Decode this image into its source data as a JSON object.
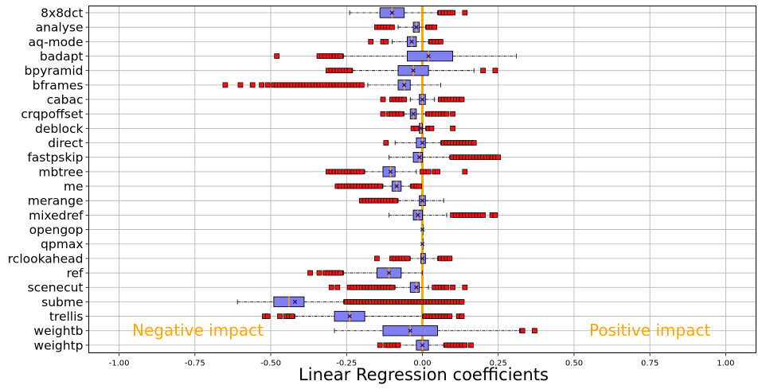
{
  "chart_data": {
    "type": "boxplot",
    "orientation": "horizontal",
    "xlabel": "Linear Regression coefficients",
    "ylabel": "",
    "xlim": [
      -1.1,
      1.1
    ],
    "x_ticks": [
      "-1.00",
      "-0.75",
      "-0.50",
      "-0.25",
      "0.00",
      "0.25",
      "0.50",
      "0.75",
      "1.00"
    ],
    "grid": true,
    "zero_line": 0.0,
    "annotations": {
      "negative": "Negative impact",
      "positive": "Positive impact"
    },
    "colors": {
      "box_fill": "#8080f0",
      "outlier_fill": "#ee1111",
      "zero_line": "#ffa500",
      "annotation": "#ffa500",
      "median": "#ffa500",
      "mean": "#1a1a8a"
    },
    "categories": [
      "8x8dct",
      "analyse",
      "aq-mode",
      "badapt",
      "bpyramid",
      "bframes",
      "cabac",
      "crqpoffset",
      "deblock",
      "direct",
      "fastpskip",
      "mbtree",
      "me",
      "merange",
      "mixedref",
      "opengop",
      "qpmax",
      "rclookahead",
      "ref",
      "scenecut",
      "subme",
      "trellis",
      "weightb",
      "weightp"
    ],
    "boxes": [
      {
        "name": "8x8dct",
        "whislo": -0.24,
        "q1": -0.14,
        "med": -0.1,
        "mean": -0.1,
        "q3": -0.06,
        "whishi": 0.05,
        "fliers": [
          0.06,
          0.07,
          0.08,
          0.09,
          0.1,
          0.14
        ]
      },
      {
        "name": "analyse",
        "whislo": -0.08,
        "q1": -0.03,
        "med": -0.02,
        "mean": -0.02,
        "q3": -0.01,
        "whishi": 0.01,
        "fliers": [
          -0.15,
          -0.14,
          -0.13,
          -0.12,
          -0.11,
          -0.1,
          0.02,
          0.03,
          0.04
        ]
      },
      {
        "name": "aq-mode",
        "whislo": -0.1,
        "q1": -0.05,
        "med": -0.035,
        "mean": -0.035,
        "q3": -0.02,
        "whishi": 0.02,
        "fliers": [
          -0.17,
          -0.13,
          -0.12,
          0.03,
          0.04,
          0.05,
          0.06
        ]
      },
      {
        "name": "badapt",
        "whislo": -0.26,
        "q1": -0.05,
        "med": 0.02,
        "mean": 0.02,
        "q3": 0.1,
        "whishi": 0.31,
        "fliers": [
          -0.48,
          -0.34,
          -0.33,
          -0.32,
          -0.31,
          -0.3,
          -0.29,
          -0.28,
          -0.27
        ]
      },
      {
        "name": "bpyramid",
        "whislo": -0.23,
        "q1": -0.08,
        "med": -0.03,
        "mean": -0.03,
        "q3": 0.02,
        "whishi": 0.17,
        "fliers": [
          -0.31,
          -0.3,
          -0.29,
          -0.28,
          -0.27,
          -0.26,
          -0.25,
          -0.24,
          0.2,
          0.24
        ]
      },
      {
        "name": "bframes",
        "whislo": -0.18,
        "q1": -0.08,
        "med": -0.06,
        "mean": -0.06,
        "q3": -0.04,
        "whishi": 0.06,
        "fliers": [
          -0.65,
          -0.6,
          -0.56,
          -0.53,
          -0.51,
          -0.49,
          -0.48,
          -0.47,
          -0.46,
          -0.45,
          -0.44,
          -0.43,
          -0.42,
          -0.41,
          -0.4,
          -0.39,
          -0.38,
          -0.37,
          -0.36,
          -0.35,
          -0.34,
          -0.33,
          -0.32,
          -0.31,
          -0.3,
          -0.29,
          -0.28,
          -0.27,
          -0.26,
          -0.25,
          -0.24,
          -0.23,
          -0.22,
          -0.21,
          -0.2
        ]
      },
      {
        "name": "cabac",
        "whislo": -0.04,
        "q1": -0.01,
        "med": 0.0,
        "mean": 0.0,
        "q3": 0.01,
        "whishi": 0.04,
        "fliers": [
          -0.13,
          -0.1,
          -0.09,
          -0.08,
          -0.07,
          -0.06,
          0.06,
          0.07,
          0.08,
          0.09,
          0.1,
          0.11,
          0.12,
          0.13
        ]
      },
      {
        "name": "crqpoffset",
        "whislo": -0.06,
        "q1": -0.04,
        "med": -0.03,
        "mean": -0.03,
        "q3": -0.02,
        "whishi": 0.01,
        "fliers": [
          -0.13,
          -0.11,
          -0.1,
          -0.09,
          -0.08,
          -0.07,
          0.02,
          0.03,
          0.04,
          0.05,
          0.06,
          0.07,
          0.08,
          0.1
        ]
      },
      {
        "name": "deblock",
        "whislo": -0.02,
        "q1": -0.01,
        "med": -0.005,
        "mean": -0.005,
        "q3": 0.0,
        "whishi": 0.01,
        "fliers": [
          -0.03,
          -0.02,
          0.02,
          0.03,
          0.1
        ]
      },
      {
        "name": "direct",
        "whislo": -0.09,
        "q1": -0.02,
        "med": 0.0,
        "mean": 0.0,
        "q3": 0.01,
        "whishi": 0.06,
        "fliers": [
          -0.12,
          0.07,
          0.08,
          0.09,
          0.1,
          0.11,
          0.12,
          0.13,
          0.14,
          0.15,
          0.16,
          0.17
        ]
      },
      {
        "name": "fastpskip",
        "whislo": -0.11,
        "q1": -0.03,
        "med": -0.01,
        "mean": -0.01,
        "q3": 0.0,
        "whishi": 0.09,
        "fliers": [
          0.1,
          0.11,
          0.12,
          0.13,
          0.14,
          0.15,
          0.16,
          0.17,
          0.18,
          0.19,
          0.2,
          0.21,
          0.22,
          0.23,
          0.24,
          0.25
        ]
      },
      {
        "name": "mbtree",
        "whislo": -0.19,
        "q1": -0.13,
        "med": -0.105,
        "mean": -0.105,
        "q3": -0.09,
        "whishi": -0.02,
        "fliers": [
          -0.31,
          -0.3,
          -0.29,
          -0.28,
          -0.27,
          -0.26,
          -0.25,
          -0.24,
          -0.23,
          -0.22,
          -0.21,
          -0.2,
          0.0,
          0.01,
          0.02,
          0.04,
          0.05,
          0.14
        ]
      },
      {
        "name": "me",
        "whislo": -0.13,
        "q1": -0.1,
        "med": -0.085,
        "mean": -0.085,
        "q3": -0.07,
        "whishi": -0.04,
        "fliers": [
          -0.28,
          -0.27,
          -0.26,
          -0.25,
          -0.24,
          -0.23,
          -0.22,
          -0.21,
          -0.2,
          -0.19,
          -0.18,
          -0.17,
          -0.16,
          -0.15,
          -0.14,
          -0.03,
          -0.02,
          -0.01
        ]
      },
      {
        "name": "merange",
        "whislo": -0.08,
        "q1": -0.01,
        "med": 0.0,
        "mean": 0.0,
        "q3": 0.01,
        "whishi": 0.07,
        "fliers": [
          -0.2,
          -0.19,
          -0.18,
          -0.17,
          -0.16,
          -0.15,
          -0.14,
          -0.13,
          -0.12,
          -0.11,
          -0.1,
          -0.09
        ]
      },
      {
        "name": "mixedref",
        "whislo": -0.11,
        "q1": -0.03,
        "med": -0.015,
        "mean": -0.015,
        "q3": 0.0,
        "whishi": 0.08,
        "fliers": [
          0.1,
          0.11,
          0.12,
          0.13,
          0.14,
          0.15,
          0.16,
          0.17,
          0.18,
          0.19,
          0.2,
          0.23,
          0.24
        ]
      },
      {
        "name": "opengop",
        "whislo": 0.0,
        "q1": 0.0,
        "med": 0.0,
        "mean": 0.0,
        "q3": 0.0,
        "whishi": 0.0,
        "fliers": []
      },
      {
        "name": "qpmax",
        "whislo": 0.0,
        "q1": 0.0,
        "med": 0.0,
        "mean": 0.0,
        "q3": 0.0,
        "whishi": 0.0,
        "fliers": []
      },
      {
        "name": "rclookahead",
        "whislo": -0.04,
        "q1": -0.005,
        "med": 0.0,
        "mean": 0.0,
        "q3": 0.01,
        "whishi": 0.05,
        "fliers": [
          -0.15,
          -0.1,
          -0.09,
          -0.08,
          -0.07,
          -0.06,
          -0.05,
          0.06,
          0.07,
          0.08,
          0.09
        ]
      },
      {
        "name": "ref",
        "whislo": -0.26,
        "q1": -0.15,
        "med": -0.11,
        "mean": -0.11,
        "q3": -0.07,
        "whishi": 0.0,
        "fliers": [
          -0.37,
          -0.34,
          -0.32,
          -0.31,
          -0.3,
          -0.29,
          -0.28,
          -0.27
        ]
      },
      {
        "name": "scenecut",
        "whislo": -0.09,
        "q1": -0.04,
        "med": -0.02,
        "mean": -0.02,
        "q3": -0.01,
        "whishi": 0.02,
        "fliers": [
          -0.3,
          -0.28,
          -0.24,
          -0.23,
          -0.22,
          -0.21,
          -0.2,
          -0.19,
          -0.18,
          -0.17,
          -0.16,
          -0.15,
          -0.14,
          -0.13,
          -0.12,
          -0.11,
          -0.1,
          0.04,
          0.05,
          0.06,
          0.07,
          0.08,
          0.1,
          0.14
        ]
      },
      {
        "name": "subme",
        "whislo": -0.61,
        "q1": -0.49,
        "med": -0.44,
        "mean": -0.42,
        "q3": -0.39,
        "whishi": -0.26,
        "fliers": [
          -0.25,
          -0.24,
          -0.23,
          -0.22,
          -0.21,
          -0.2,
          -0.19,
          -0.18,
          -0.17,
          -0.16,
          -0.15,
          -0.14,
          -0.13,
          -0.12,
          -0.11,
          -0.1,
          -0.09,
          -0.08,
          -0.07,
          -0.06,
          -0.05,
          -0.04,
          -0.03,
          -0.02,
          -0.01,
          0.0,
          0.01,
          0.02,
          0.03,
          0.04,
          0.05,
          0.06,
          0.07,
          0.08,
          0.09,
          0.1,
          0.11,
          0.12,
          0.13
        ]
      },
      {
        "name": "trellis",
        "whislo": -0.42,
        "q1": -0.29,
        "med": -0.24,
        "mean": -0.24,
        "q3": -0.19,
        "whishi": 0.0,
        "fliers": [
          -0.52,
          -0.51,
          -0.47,
          -0.45,
          -0.44,
          -0.43,
          0.01,
          0.02,
          0.03,
          0.04,
          0.05,
          0.06,
          0.07,
          0.08,
          0.09,
          0.12,
          0.13
        ]
      },
      {
        "name": "weightb",
        "whislo": -0.29,
        "q1": -0.13,
        "med": -0.04,
        "mean": -0.04,
        "q3": 0.05,
        "whishi": 0.32,
        "fliers": [
          0.33,
          0.37
        ]
      },
      {
        "name": "weightp",
        "whislo": -0.08,
        "q1": -0.02,
        "med": 0.0,
        "mean": 0.0,
        "q3": 0.02,
        "whishi": 0.07,
        "fliers": [
          -0.14,
          -0.12,
          -0.11,
          -0.1,
          -0.09,
          -0.08,
          0.08,
          0.09,
          0.1,
          0.11,
          0.12,
          0.13,
          0.14,
          0.16
        ]
      }
    ]
  }
}
